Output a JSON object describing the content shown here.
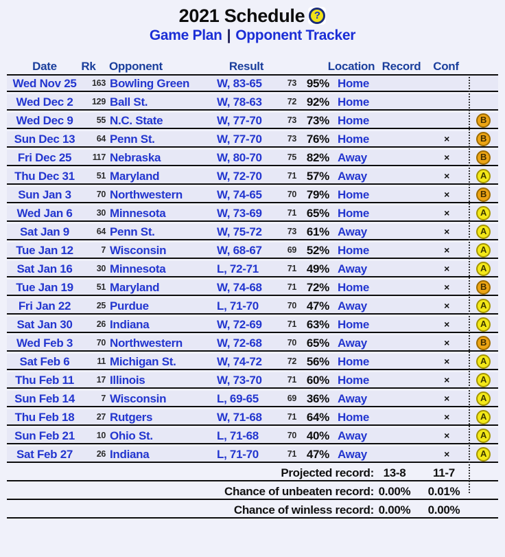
{
  "page": {
    "title": "2021 Schedule",
    "help_glyph": "?"
  },
  "nav": {
    "links": [
      "Game Plan",
      "Opponent Tracker"
    ],
    "separator": "|"
  },
  "colors": {
    "page_bg": "#f0f1fa",
    "row_bg": "#e7e8f6",
    "header_navy": "#1b3f9c",
    "row_text_blue": "#2336cf",
    "link_blue": "#1b2ed6",
    "line_black": "#0c0c0c",
    "tier_a_yellow": "#f3e818",
    "tier_b_orange": "#eca414",
    "help_icon_yellow": "#f2e318"
  },
  "table": {
    "headers": {
      "date": "Date",
      "rk": "Rk",
      "opponent": "Opponent",
      "result": "Result",
      "location": "Location",
      "record": "Record",
      "conf": "Conf"
    },
    "games": [
      {
        "date": "Wed Nov 25",
        "rk": "163",
        "opponent": "Bowling Green",
        "result": "W, 83-65",
        "proj": "73",
        "win_pct": "95%",
        "location": "Home",
        "conf_mark": "",
        "tier": ""
      },
      {
        "date": "Wed Dec 2",
        "rk": "129",
        "opponent": "Ball St.",
        "result": "W, 78-63",
        "proj": "72",
        "win_pct": "92%",
        "location": "Home",
        "conf_mark": "",
        "tier": ""
      },
      {
        "date": "Wed Dec 9",
        "rk": "55",
        "opponent": "N.C. State",
        "result": "W, 77-70",
        "proj": "73",
        "win_pct": "73%",
        "location": "Home",
        "conf_mark": "",
        "tier": "B"
      },
      {
        "date": "Sun Dec 13",
        "rk": "64",
        "opponent": "Penn St.",
        "result": "W, 77-70",
        "proj": "73",
        "win_pct": "76%",
        "location": "Home",
        "conf_mark": "×",
        "tier": "B"
      },
      {
        "date": "Fri Dec 25",
        "rk": "117",
        "opponent": "Nebraska",
        "result": "W, 80-70",
        "proj": "75",
        "win_pct": "82%",
        "location": "Away",
        "conf_mark": "×",
        "tier": "B"
      },
      {
        "date": "Thu Dec 31",
        "rk": "51",
        "opponent": "Maryland",
        "result": "W, 72-70",
        "proj": "71",
        "win_pct": "57%",
        "location": "Away",
        "conf_mark": "×",
        "tier": "A"
      },
      {
        "date": "Sun Jan 3",
        "rk": "70",
        "opponent": "Northwestern",
        "result": "W, 74-65",
        "proj": "70",
        "win_pct": "79%",
        "location": "Home",
        "conf_mark": "×",
        "tier": "B"
      },
      {
        "date": "Wed Jan 6",
        "rk": "30",
        "opponent": "Minnesota",
        "result": "W, 73-69",
        "proj": "71",
        "win_pct": "65%",
        "location": "Home",
        "conf_mark": "×",
        "tier": "A"
      },
      {
        "date": "Sat Jan 9",
        "rk": "64",
        "opponent": "Penn St.",
        "result": "W, 75-72",
        "proj": "73",
        "win_pct": "61%",
        "location": "Away",
        "conf_mark": "×",
        "tier": "A"
      },
      {
        "date": "Tue Jan 12",
        "rk": "7",
        "opponent": "Wisconsin",
        "result": "W, 68-67",
        "proj": "69",
        "win_pct": "52%",
        "location": "Home",
        "conf_mark": "×",
        "tier": "A"
      },
      {
        "date": "Sat Jan 16",
        "rk": "30",
        "opponent": "Minnesota",
        "result": "L, 72-71",
        "proj": "71",
        "win_pct": "49%",
        "location": "Away",
        "conf_mark": "×",
        "tier": "A"
      },
      {
        "date": "Tue Jan 19",
        "rk": "51",
        "opponent": "Maryland",
        "result": "W, 74-68",
        "proj": "71",
        "win_pct": "72%",
        "location": "Home",
        "conf_mark": "×",
        "tier": "B"
      },
      {
        "date": "Fri Jan 22",
        "rk": "25",
        "opponent": "Purdue",
        "result": "L, 71-70",
        "proj": "70",
        "win_pct": "47%",
        "location": "Away",
        "conf_mark": "×",
        "tier": "A"
      },
      {
        "date": "Sat Jan 30",
        "rk": "26",
        "opponent": "Indiana",
        "result": "W, 72-69",
        "proj": "71",
        "win_pct": "63%",
        "location": "Home",
        "conf_mark": "×",
        "tier": "A"
      },
      {
        "date": "Wed Feb 3",
        "rk": "70",
        "opponent": "Northwestern",
        "result": "W, 72-68",
        "proj": "70",
        "win_pct": "65%",
        "location": "Away",
        "conf_mark": "×",
        "tier": "B"
      },
      {
        "date": "Sat Feb 6",
        "rk": "11",
        "opponent": "Michigan St.",
        "result": "W, 74-72",
        "proj": "72",
        "win_pct": "56%",
        "location": "Home",
        "conf_mark": "×",
        "tier": "A"
      },
      {
        "date": "Thu Feb 11",
        "rk": "17",
        "opponent": "Illinois",
        "result": "W, 73-70",
        "proj": "71",
        "win_pct": "60%",
        "location": "Home",
        "conf_mark": "×",
        "tier": "A"
      },
      {
        "date": "Sun Feb 14",
        "rk": "7",
        "opponent": "Wisconsin",
        "result": "L, 69-65",
        "proj": "69",
        "win_pct": "36%",
        "location": "Away",
        "conf_mark": "×",
        "tier": "A"
      },
      {
        "date": "Thu Feb 18",
        "rk": "27",
        "opponent": "Rutgers",
        "result": "W, 71-68",
        "proj": "71",
        "win_pct": "64%",
        "location": "Home",
        "conf_mark": "×",
        "tier": "A"
      },
      {
        "date": "Sun Feb 21",
        "rk": "10",
        "opponent": "Ohio St.",
        "result": "L, 71-68",
        "proj": "70",
        "win_pct": "40%",
        "location": "Away",
        "conf_mark": "×",
        "tier": "A"
      },
      {
        "date": "Sat Feb 27",
        "rk": "26",
        "opponent": "Indiana",
        "result": "L, 71-70",
        "proj": "71",
        "win_pct": "47%",
        "location": "Away",
        "conf_mark": "×",
        "tier": "A"
      }
    ],
    "footer": [
      {
        "label": "Projected record:",
        "overall": "13-8",
        "conf": "11-7"
      },
      {
        "label": "Chance of unbeaten record:",
        "overall": "0.00%",
        "conf": "0.01%"
      },
      {
        "label": "Chance of winless record:",
        "overall": "0.00%",
        "conf": "0.00%"
      }
    ]
  }
}
